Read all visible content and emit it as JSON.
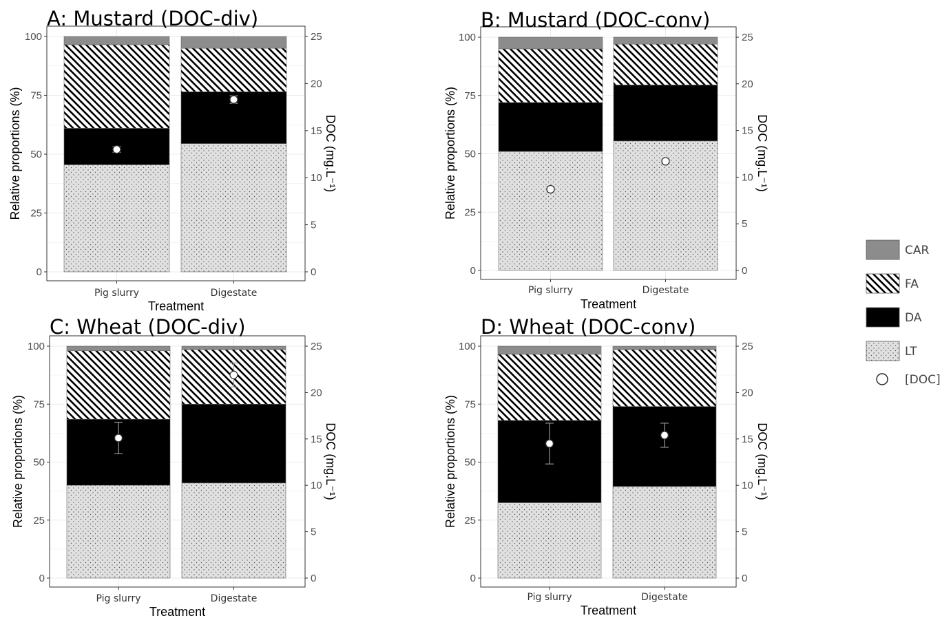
{
  "chart_data": [
    {
      "type": "bar",
      "stacked": true,
      "title": "A: Mustard (DOC-div)",
      "xlabel": "Treatment",
      "ylabel": "Relative proportions (%)",
      "y2label": "DOC (mg.L⁻¹)",
      "ylim": [
        0,
        100
      ],
      "y2lim": [
        0,
        25
      ],
      "yticks": [
        "0",
        "25",
        "50",
        "75",
        "100"
      ],
      "y2ticks": [
        "0",
        "5",
        "10",
        "15",
        "20",
        "25"
      ],
      "categories": [
        "Pig slurry",
        "Digestate"
      ],
      "series": [
        {
          "name": "LT",
          "values": [
            45.5,
            54.5
          ]
        },
        {
          "name": "DA",
          "values": [
            15.5,
            22.0
          ]
        },
        {
          "name": "FA",
          "values": [
            35.5,
            18.5
          ]
        },
        {
          "name": "CAR",
          "values": [
            3.5,
            5.0
          ]
        }
      ],
      "doc": [
        {
          "category": "Pig slurry",
          "value": 13.0,
          "err": 0.3
        },
        {
          "category": "Digestate",
          "value": 18.3,
          "err": 0.4
        }
      ]
    },
    {
      "type": "bar",
      "stacked": true,
      "title": "B: Mustard (DOC-conv)",
      "xlabel": "Treatment",
      "ylabel": "Relative proportions (%)",
      "y2label": "DOC (mg.L⁻¹)",
      "ylim": [
        0,
        100
      ],
      "y2lim": [
        0,
        25
      ],
      "yticks": [
        "0",
        "25",
        "50",
        "75",
        "100"
      ],
      "y2ticks": [
        "0",
        "5",
        "10",
        "15",
        "20",
        "25"
      ],
      "categories": [
        "Pig slurry",
        "Digestate"
      ],
      "series": [
        {
          "name": "LT",
          "values": [
            51.0,
            55.5
          ]
        },
        {
          "name": "DA",
          "values": [
            21.0,
            24.0
          ]
        },
        {
          "name": "FA",
          "values": [
            23.0,
            17.5
          ]
        },
        {
          "name": "CAR",
          "values": [
            5.0,
            3.0
          ]
        }
      ],
      "doc": [
        {
          "category": "Pig slurry",
          "value": 8.7,
          "err": 0.3
        },
        {
          "category": "Digestate",
          "value": 11.7,
          "err": 0.2
        }
      ]
    },
    {
      "type": "bar",
      "stacked": true,
      "title": "C: Wheat (DOC-div)",
      "xlabel": "Treatment",
      "ylabel": "Relative proportions (%)",
      "y2label": "DOC (mg.L⁻¹)",
      "ylim": [
        0,
        100
      ],
      "y2lim": [
        0,
        25
      ],
      "yticks": [
        "0",
        "25",
        "50",
        "75",
        "100"
      ],
      "y2ticks": [
        "0",
        "5",
        "10",
        "15",
        "20",
        "25"
      ],
      "categories": [
        "Pig slurry",
        "Digestate"
      ],
      "series": [
        {
          "name": "LT",
          "values": [
            40.0,
            41.0
          ]
        },
        {
          "name": "DA",
          "values": [
            28.5,
            34.0
          ]
        },
        {
          "name": "FA",
          "values": [
            29.5,
            23.5
          ]
        },
        {
          "name": "CAR",
          "values": [
            2.0,
            1.5
          ]
        }
      ],
      "doc": [
        {
          "category": "Pig slurry",
          "value": 15.1,
          "err": 1.7
        },
        {
          "category": "Digestate",
          "value": 21.9,
          "err": 1.3
        }
      ]
    },
    {
      "type": "bar",
      "stacked": true,
      "title": "D: Wheat (DOC-conv)",
      "xlabel": "Treatment",
      "ylabel": "Relative proportions (%)",
      "y2label": "DOC (mg.L⁻¹)",
      "ylim": [
        0,
        100
      ],
      "y2lim": [
        0,
        25
      ],
      "yticks": [
        "0",
        "25",
        "50",
        "75",
        "100"
      ],
      "y2ticks": [
        "0",
        "5",
        "10",
        "15",
        "20",
        "25"
      ],
      "categories": [
        "Pig slurry",
        "Digestate"
      ],
      "series": [
        {
          "name": "LT",
          "values": [
            32.5,
            39.5
          ]
        },
        {
          "name": "DA",
          "values": [
            35.5,
            34.5
          ]
        },
        {
          "name": "FA",
          "values": [
            28.5,
            24.5
          ]
        },
        {
          "name": "CAR",
          "values": [
            3.5,
            1.5
          ]
        }
      ],
      "doc": [
        {
          "category": "Pig slurry",
          "value": 14.5,
          "err": 2.2
        },
        {
          "category": "Digestate",
          "value": 15.4,
          "err": 1.3
        }
      ]
    }
  ],
  "legend": {
    "position": "right",
    "items": [
      {
        "label": "CAR",
        "key": "CAR"
      },
      {
        "label": "FA",
        "key": "FA"
      },
      {
        "label": "DA",
        "key": "DA"
      },
      {
        "label": "LT",
        "key": "LT"
      },
      {
        "label": "[DOC]",
        "key": "DOC"
      }
    ]
  },
  "colors": {
    "CAR": "#8c8c8c",
    "DA": "#000000",
    "LT_fill": "#e0e0e0",
    "LT_dots": "#555555",
    "FA_fill": "#ffffff",
    "FA_hatch": "#000000",
    "grid": "#ebebeb",
    "panel_border": "#333333",
    "point_fill": "#ffffff",
    "errorbar": "#999999"
  }
}
